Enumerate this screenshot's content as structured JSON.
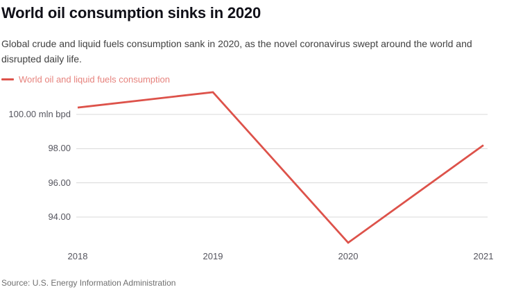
{
  "header": {
    "title": "World oil consumption sinks in 2020",
    "subtitle": "Global crude and liquid fuels consumption sank in 2020, as the novel coronavirus swept around the world and disrupted daily life."
  },
  "footer": {
    "source": "Source: U.S. Energy Information Administration"
  },
  "colors": {
    "line": "#dd524a",
    "grid": "#d8d8d8",
    "title": "#101018",
    "subtitle": "#404040",
    "tick": "#55555e",
    "source": "#6f6f6f"
  },
  "chart_data": {
    "type": "line",
    "x": [
      "2018",
      "2019",
      "2020",
      "2021"
    ],
    "series": [
      {
        "name": "World oil and liquid fuels consumption",
        "values": [
          100.4,
          101.3,
          92.5,
          98.2
        ],
        "color": "#dd524a"
      }
    ],
    "unit": "mln bpd",
    "yticks": [
      {
        "value": 100,
        "label": "100.00 mln bpd"
      },
      {
        "value": 98,
        "label": "98.00"
      },
      {
        "value": 96,
        "label": "96.00"
      },
      {
        "value": 94,
        "label": "94.00"
      }
    ],
    "ylim": [
      92,
      101.5
    ],
    "grid": "horizontal",
    "legend_position": "top-left"
  }
}
